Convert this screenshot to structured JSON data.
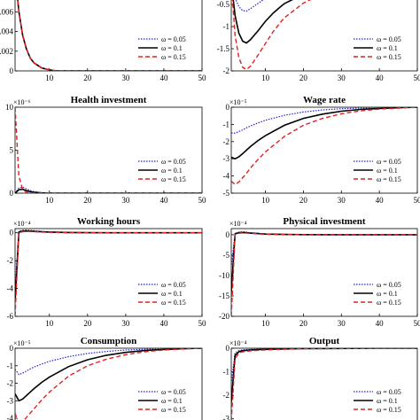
{
  "legend_labels": [
    "ω = 0.05",
    "ω = 0.1",
    "ω = 0.15"
  ],
  "series_colors": [
    "#2020d8",
    "#000000",
    "#e02020"
  ],
  "chart_data": [
    {
      "type": "line",
      "title": "",
      "exponent": "",
      "x": [
        1,
        2,
        3,
        4,
        5,
        6,
        8,
        10,
        12,
        15,
        20,
        25,
        30,
        35,
        40,
        45,
        50
      ],
      "xticks": [
        "10",
        "20",
        "30",
        "40",
        "50"
      ],
      "xlim": [
        1,
        50
      ],
      "ylim": [
        0,
        0.009
      ],
      "yticks": [
        "0",
        "0.002",
        "0.004",
        "0.006",
        "0.008"
      ],
      "series": [
        {
          "name": "ω = 0.05",
          "values": [
            0.01,
            0.006,
            0.0036,
            0.0022,
            0.0013,
            0.0008,
            0.0003,
            0.0001,
            0,
            0,
            0,
            0,
            0,
            0,
            0,
            0,
            0
          ]
        },
        {
          "name": "ω = 0.1",
          "values": [
            0.01,
            0.006,
            0.0036,
            0.0022,
            0.0013,
            0.0008,
            0.0003,
            0.0001,
            0,
            0,
            0,
            0,
            0,
            0,
            0,
            0,
            0
          ]
        },
        {
          "name": "ω = 0.15",
          "values": [
            0.01,
            0.006,
            0.0036,
            0.0022,
            0.0013,
            0.0008,
            0.0003,
            0.0001,
            0,
            0,
            0,
            0,
            0,
            0,
            0,
            0,
            0
          ]
        }
      ]
    },
    {
      "type": "line",
      "title": "",
      "exponent": "",
      "x": [
        1,
        2,
        3,
        4,
        5,
        6,
        8,
        10,
        12,
        14,
        15,
        20,
        25,
        30,
        35,
        40,
        45,
        50
      ],
      "xticks": [
        "10",
        "20",
        "30",
        "40",
        "50"
      ],
      "xlim": [
        1,
        50
      ],
      "ylim": [
        -2,
        0
      ],
      "yticks": [
        "-0.5",
        "-1",
        "-1.5",
        "-2"
      ],
      "series": [
        {
          "name": "ω = 0.05",
          "values": [
            0,
            -0.35,
            -0.55,
            -0.64,
            -0.65,
            -0.6,
            -0.48,
            -0.36,
            -0.26,
            -0.2,
            -0.17,
            -0.09,
            -0.05,
            -0.03,
            -0.02,
            -0.01,
            -0.005,
            0
          ]
        },
        {
          "name": "ω = 0.1",
          "values": [
            0,
            -0.75,
            -1.15,
            -1.33,
            -1.37,
            -1.3,
            -1.1,
            -0.88,
            -0.7,
            -0.55,
            -0.48,
            -0.27,
            -0.15,
            -0.08,
            -0.04,
            -0.02,
            -0.01,
            0
          ]
        },
        {
          "name": "ω = 0.15",
          "values": [
            0,
            -1.2,
            -1.7,
            -1.92,
            -1.97,
            -1.9,
            -1.65,
            -1.38,
            -1.12,
            -0.9,
            -0.8,
            -0.47,
            -0.26,
            -0.14,
            -0.07,
            -0.04,
            -0.02,
            0
          ]
        }
      ]
    },
    {
      "type": "line",
      "title": "Health investment",
      "exponent": "×10⁻⁶",
      "x": [
        1,
        2,
        3,
        4,
        5,
        6,
        8,
        10,
        15,
        20,
        30,
        40,
        50
      ],
      "xticks": [
        "10",
        "20",
        "30",
        "40",
        "50"
      ],
      "xlim": [
        1,
        50
      ],
      "ylim": [
        0,
        10
      ],
      "yticks": [
        "0",
        "5",
        "10"
      ],
      "series": [
        {
          "name": "ω = 0.05",
          "values": [
            0,
            0.6,
            0.7,
            0.5,
            0.3,
            0.18,
            0.05,
            0.01,
            0,
            0,
            0,
            0,
            0
          ]
        },
        {
          "name": "ω = 0.1",
          "values": [
            0,
            0.4,
            0.45,
            0.3,
            0.18,
            0.1,
            0.03,
            0,
            0,
            0,
            0,
            0,
            0
          ]
        },
        {
          "name": "ω = 0.15",
          "values": [
            10,
            2.0,
            0.4,
            0.1,
            0.03,
            0,
            0,
            0,
            0,
            0,
            0,
            0,
            0
          ]
        }
      ]
    },
    {
      "type": "line",
      "title": "Wage rate",
      "exponent": "×10⁻⁵",
      "x": [
        1,
        2,
        3,
        4,
        5,
        6,
        8,
        10,
        15,
        20,
        25,
        30,
        35,
        40,
        45,
        50
      ],
      "xticks": [
        "10",
        "20",
        "30",
        "40",
        "50"
      ],
      "xlim": [
        1,
        50
      ],
      "ylim": [
        -5,
        0
      ],
      "yticks": [
        "0",
        "-1",
        "-2",
        "-3",
        "-4",
        "-5"
      ],
      "series": [
        {
          "name": "ω = 0.05",
          "values": [
            -1.5,
            -1.5,
            -1.42,
            -1.32,
            -1.2,
            -1.1,
            -0.92,
            -0.76,
            -0.47,
            -0.28,
            -0.16,
            -0.09,
            -0.05,
            -0.03,
            -0.01,
            0
          ]
        },
        {
          "name": "ω = 0.1",
          "values": [
            -2.9,
            -3.0,
            -2.88,
            -2.7,
            -2.5,
            -2.3,
            -1.95,
            -1.65,
            -1.05,
            -0.65,
            -0.4,
            -0.23,
            -0.13,
            -0.07,
            -0.03,
            0
          ]
        },
        {
          "name": "ω = 0.15",
          "values": [
            -4.3,
            -4.5,
            -4.35,
            -4.1,
            -3.85,
            -3.55,
            -3.05,
            -2.6,
            -1.7,
            -1.05,
            -0.65,
            -0.38,
            -0.21,
            -0.11,
            -0.05,
            0
          ]
        }
      ]
    },
    {
      "type": "line",
      "title": "Working hours",
      "exponent": "×10⁻⁴",
      "x": [
        1,
        2,
        3,
        4,
        5,
        6,
        8,
        10,
        15,
        20,
        30,
        40,
        50
      ],
      "xticks": [
        "10",
        "20",
        "30",
        "40",
        "50"
      ],
      "xlim": [
        1,
        50
      ],
      "ylim": [
        -6,
        0.3
      ],
      "yticks": [
        "0",
        "-2",
        "-4",
        "-6"
      ],
      "series": [
        {
          "name": "ω = 0.05",
          "values": [
            -4.0,
            0.1,
            0.18,
            0.2,
            0.18,
            0.15,
            0.1,
            0.07,
            0.03,
            0.01,
            0,
            0,
            0
          ]
        },
        {
          "name": "ω = 0.1",
          "values": [
            -5.0,
            0.05,
            0.12,
            0.13,
            0.12,
            0.1,
            0.07,
            0.05,
            0.02,
            0.01,
            0,
            0,
            0
          ]
        },
        {
          "name": "ω = 0.15",
          "values": [
            -6.0,
            0.0,
            0.08,
            0.1,
            0.09,
            0.08,
            0.05,
            0.03,
            0.01,
            0,
            0,
            0,
            0
          ]
        }
      ]
    },
    {
      "type": "line",
      "title": "Physical investment",
      "exponent": "×10⁻⁴",
      "x": [
        1,
        2,
        3,
        4,
        5,
        6,
        8,
        10,
        15,
        20,
        30,
        40,
        50
      ],
      "xticks": [
        "10",
        "20",
        "30",
        "40",
        "50"
      ],
      "xlim": [
        1,
        50
      ],
      "ylim": [
        -20,
        1.5
      ],
      "yticks": [
        "0",
        "-5",
        "-10",
        "-15",
        "-20"
      ],
      "series": [
        {
          "name": "ω = 0.05",
          "values": [
            -8,
            0.3,
            0.6,
            0.7,
            0.6,
            0.5,
            0.35,
            0.2,
            0.08,
            0.03,
            0,
            0,
            0
          ]
        },
        {
          "name": "ω = 0.1",
          "values": [
            -14,
            0.2,
            0.5,
            0.55,
            0.5,
            0.4,
            0.28,
            0.16,
            0.06,
            0.02,
            0,
            0,
            0
          ]
        },
        {
          "name": "ω = 0.15",
          "values": [
            -20,
            0.0,
            0.35,
            0.45,
            0.4,
            0.32,
            0.22,
            0.12,
            0.04,
            0.01,
            0,
            0,
            0
          ]
        }
      ]
    },
    {
      "type": "line",
      "title": "Consumption",
      "exponent": "×10⁻⁵",
      "x": [
        1,
        2,
        3,
        4,
        5,
        6,
        8,
        10,
        15,
        20,
        25,
        30,
        35,
        40,
        45,
        50
      ],
      "xticks": [],
      "xlim": [
        1,
        50
      ],
      "ylim": [
        -4.3,
        0
      ],
      "yticks": [
        "0",
        "-1",
        "-2",
        "-3",
        "-4"
      ],
      "series": [
        {
          "name": "ω = 0.05",
          "values": [
            -1.2,
            -1.5,
            -1.42,
            -1.3,
            -1.18,
            -1.07,
            -0.9,
            -0.75,
            -0.48,
            -0.3,
            -0.18,
            -0.1,
            -0.06,
            -0.03,
            -0.01,
            0
          ]
        },
        {
          "name": "ω = 0.1",
          "values": [
            -2.6,
            -3.0,
            -2.9,
            -2.7,
            -2.5,
            -2.3,
            -1.95,
            -1.65,
            -1.05,
            -0.66,
            -0.4,
            -0.24,
            -0.13,
            -0.07,
            -0.03,
            0
          ]
        },
        {
          "name": "ω = 0.15",
          "values": [
            -3.7,
            -4.4,
            -4.2,
            -3.95,
            -3.7,
            -3.45,
            -2.95,
            -2.5,
            -1.6,
            -1.0,
            -0.62,
            -0.37,
            -0.2,
            -0.1,
            -0.04,
            0
          ]
        }
      ]
    },
    {
      "type": "line",
      "title": "Output",
      "exponent": "×10⁻⁴",
      "x": [
        1,
        2,
        3,
        4,
        5,
        6,
        8,
        10,
        15,
        20,
        30,
        40,
        50
      ],
      "xticks": [],
      "xlim": [
        1,
        50
      ],
      "ylim": [
        -3.2,
        0
      ],
      "yticks": [
        "0",
        "-1",
        "-2",
        "-3"
      ],
      "series": [
        {
          "name": "ω = 0.05",
          "values": [
            -1.5,
            -0.2,
            -0.1,
            -0.07,
            -0.06,
            -0.05,
            -0.04,
            -0.03,
            -0.02,
            -0.01,
            0,
            0,
            0
          ]
        },
        {
          "name": "ω = 0.1",
          "values": [
            -2.3,
            -0.3,
            -0.15,
            -0.1,
            -0.09,
            -0.08,
            -0.06,
            -0.05,
            -0.03,
            -0.02,
            -0.01,
            0,
            0
          ]
        },
        {
          "name": "ω = 0.15",
          "values": [
            -3.1,
            -0.45,
            -0.2,
            -0.15,
            -0.13,
            -0.11,
            -0.09,
            -0.07,
            -0.04,
            -0.02,
            -0.01,
            0,
            0
          ]
        }
      ]
    }
  ]
}
